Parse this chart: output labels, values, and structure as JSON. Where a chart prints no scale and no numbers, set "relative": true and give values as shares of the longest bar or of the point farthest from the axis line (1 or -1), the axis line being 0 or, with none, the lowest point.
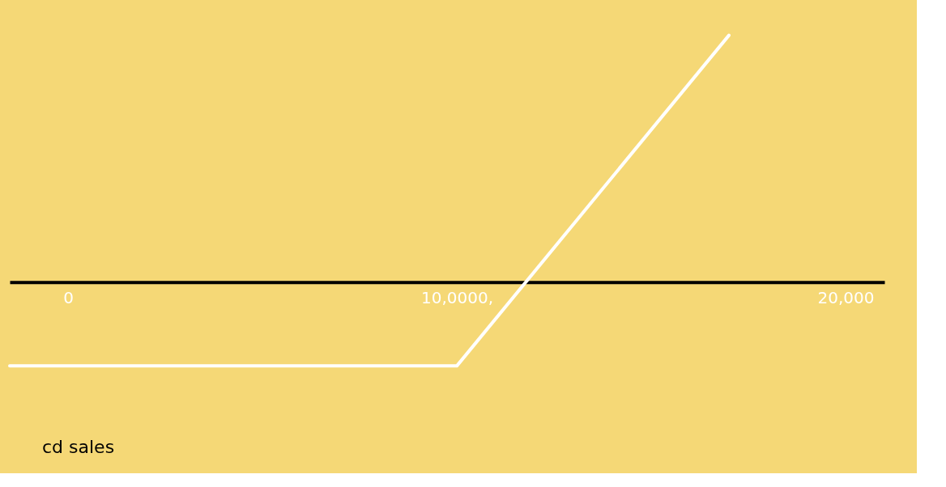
{
  "chart_data": {
    "type": "line",
    "relative": true,
    "xlabel": "cd sales",
    "x": [
      -1500,
      10000,
      17000
    ],
    "series": [
      {
        "color": "#ffffff",
        "values": [
          -0.34,
          -0.34,
          1
        ]
      }
    ],
    "xlim": [
      -1500,
      21000
    ],
    "xticks": [
      0,
      {
        "value": 10000,
        "label": "10,0000,"
      },
      {
        "value": 20000,
        "label": "20,000"
      }
    ],
    "grid": false,
    "line_style": "solid",
    "marker": "none"
  }
}
